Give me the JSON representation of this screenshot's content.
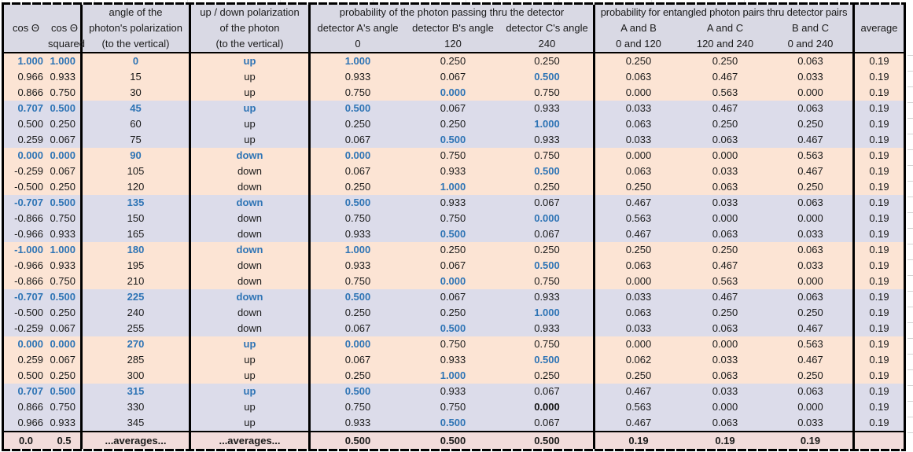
{
  "colors": {
    "header_bg": "#d9d9e4",
    "band_peach": "#fce4d4",
    "band_lavender": "#dcdcea",
    "footer_bg": "#f2dcdb",
    "highlight_blue": "#2e74b5",
    "border": "#000000"
  },
  "header": {
    "cos": "cos Θ",
    "cos_sq_line1": "cos Θ",
    "cos_sq_line2": "squared",
    "angle_line1": "angle of the",
    "angle_line2": "photon's polarization",
    "angle_line3": "(to the vertical)",
    "updown_line1": "up / down polarization",
    "updown_line2": "of the photon",
    "updown_line3": "(to the vertical)",
    "detector_group": "probability of the photon passing thru the detector",
    "det_a": "detector A's angle",
    "det_a_angle": "0",
    "det_b": "detector B's angle",
    "det_b_angle": "120",
    "det_c": "detector C's angle",
    "det_c_angle": "240",
    "pair_group": "probability for entangled photon pairs thru detector pairs",
    "pair_ab": "A and B",
    "pair_ab_angles": "0 and 120",
    "pair_ac": "A and C",
    "pair_ac_angles": "120 and 240",
    "pair_bc": "B and C",
    "pair_bc_angles": "0 and 240",
    "average": "average"
  },
  "rows": [
    {
      "cells": [
        "1.000",
        "1.000",
        "0",
        "up",
        "1.000",
        "0.250",
        "0.250",
        "0.250",
        "0.250",
        "0.063",
        "0.19"
      ],
      "hl": [
        0,
        1,
        2,
        3,
        4
      ],
      "kb": [],
      "band": "peach"
    },
    {
      "cells": [
        "0.966",
        "0.933",
        "15",
        "up",
        "0.933",
        "0.067",
        "0.500",
        "0.063",
        "0.467",
        "0.033",
        "0.19"
      ],
      "hl": [
        6
      ],
      "kb": [],
      "band": "peach"
    },
    {
      "cells": [
        "0.866",
        "0.750",
        "30",
        "up",
        "0.750",
        "0.000",
        "0.750",
        "0.000",
        "0.563",
        "0.000",
        "0.19"
      ],
      "hl": [
        5
      ],
      "kb": [],
      "band": "peach"
    },
    {
      "cells": [
        "0.707",
        "0.500",
        "45",
        "up",
        "0.500",
        "0.067",
        "0.933",
        "0.033",
        "0.467",
        "0.063",
        "0.19"
      ],
      "hl": [
        0,
        1,
        2,
        3,
        4
      ],
      "kb": [],
      "band": "lav"
    },
    {
      "cells": [
        "0.500",
        "0.250",
        "60",
        "up",
        "0.250",
        "0.250",
        "1.000",
        "0.063",
        "0.250",
        "0.250",
        "0.19"
      ],
      "hl": [
        6
      ],
      "kb": [],
      "band": "lav"
    },
    {
      "cells": [
        "0.259",
        "0.067",
        "75",
        "up",
        "0.067",
        "0.500",
        "0.933",
        "0.033",
        "0.063",
        "0.467",
        "0.19"
      ],
      "hl": [
        5
      ],
      "kb": [],
      "band": "lav"
    },
    {
      "cells": [
        "0.000",
        "0.000",
        "90",
        "down",
        "0.000",
        "0.750",
        "0.750",
        "0.000",
        "0.000",
        "0.563",
        "0.19"
      ],
      "hl": [
        0,
        1,
        2,
        3,
        4
      ],
      "kb": [],
      "band": "peach"
    },
    {
      "cells": [
        "-0.259",
        "0.067",
        "105",
        "down",
        "0.067",
        "0.933",
        "0.500",
        "0.063",
        "0.033",
        "0.467",
        "0.19"
      ],
      "hl": [
        6
      ],
      "kb": [],
      "band": "peach"
    },
    {
      "cells": [
        "-0.500",
        "0.250",
        "120",
        "down",
        "0.250",
        "1.000",
        "0.250",
        "0.250",
        "0.063",
        "0.250",
        "0.19"
      ],
      "hl": [
        5
      ],
      "kb": [],
      "band": "peach"
    },
    {
      "cells": [
        "-0.707",
        "0.500",
        "135",
        "down",
        "0.500",
        "0.933",
        "0.067",
        "0.467",
        "0.033",
        "0.063",
        "0.19"
      ],
      "hl": [
        0,
        1,
        2,
        3,
        4
      ],
      "kb": [],
      "band": "lav"
    },
    {
      "cells": [
        "-0.866",
        "0.750",
        "150",
        "down",
        "0.750",
        "0.750",
        "0.000",
        "0.563",
        "0.000",
        "0.000",
        "0.19"
      ],
      "hl": [
        6
      ],
      "kb": [],
      "band": "lav"
    },
    {
      "cells": [
        "-0.966",
        "0.933",
        "165",
        "down",
        "0.933",
        "0.500",
        "0.067",
        "0.467",
        "0.063",
        "0.033",
        "0.19"
      ],
      "hl": [
        5
      ],
      "kb": [],
      "band": "lav"
    },
    {
      "cells": [
        "-1.000",
        "1.000",
        "180",
        "down",
        "1.000",
        "0.250",
        "0.250",
        "0.250",
        "0.250",
        "0.063",
        "0.19"
      ],
      "hl": [
        0,
        1,
        2,
        3,
        4
      ],
      "kb": [],
      "band": "peach"
    },
    {
      "cells": [
        "-0.966",
        "0.933",
        "195",
        "down",
        "0.933",
        "0.067",
        "0.500",
        "0.063",
        "0.467",
        "0.033",
        "0.19"
      ],
      "hl": [
        6
      ],
      "kb": [],
      "band": "peach"
    },
    {
      "cells": [
        "-0.866",
        "0.750",
        "210",
        "down",
        "0.750",
        "0.000",
        "0.750",
        "0.000",
        "0.563",
        "0.000",
        "0.19"
      ],
      "hl": [
        5
      ],
      "kb": [],
      "band": "peach"
    },
    {
      "cells": [
        "-0.707",
        "0.500",
        "225",
        "down",
        "0.500",
        "0.067",
        "0.933",
        "0.033",
        "0.467",
        "0.063",
        "0.19"
      ],
      "hl": [
        0,
        1,
        2,
        3,
        4
      ],
      "kb": [],
      "band": "lav"
    },
    {
      "cells": [
        "-0.500",
        "0.250",
        "240",
        "down",
        "0.250",
        "0.250",
        "1.000",
        "0.063",
        "0.250",
        "0.250",
        "0.19"
      ],
      "hl": [
        6
      ],
      "kb": [],
      "band": "lav"
    },
    {
      "cells": [
        "-0.259",
        "0.067",
        "255",
        "down",
        "0.067",
        "0.500",
        "0.933",
        "0.033",
        "0.063",
        "0.467",
        "0.19"
      ],
      "hl": [
        5
      ],
      "kb": [],
      "band": "lav"
    },
    {
      "cells": [
        "0.000",
        "0.000",
        "270",
        "up",
        "0.000",
        "0.750",
        "0.750",
        "0.000",
        "0.000",
        "0.563",
        "0.19"
      ],
      "hl": [
        0,
        1,
        2,
        3,
        4
      ],
      "kb": [],
      "band": "peach"
    },
    {
      "cells": [
        "0.259",
        "0.067",
        "285",
        "up",
        "0.067",
        "0.933",
        "0.500",
        "0.062",
        "0.033",
        "0.467",
        "0.19"
      ],
      "hl": [
        6
      ],
      "kb": [],
      "band": "peach"
    },
    {
      "cells": [
        "0.500",
        "0.250",
        "300",
        "up",
        "0.250",
        "1.000",
        "0.250",
        "0.250",
        "0.063",
        "0.250",
        "0.19"
      ],
      "hl": [
        5
      ],
      "kb": [],
      "band": "peach"
    },
    {
      "cells": [
        "0.707",
        "0.500",
        "315",
        "up",
        "0.500",
        "0.933",
        "0.067",
        "0.467",
        "0.033",
        "0.063",
        "0.19"
      ],
      "hl": [
        0,
        1,
        2,
        3,
        4
      ],
      "kb": [],
      "band": "lav"
    },
    {
      "cells": [
        "0.866",
        "0.750",
        "330",
        "up",
        "0.750",
        "0.750",
        "0.000",
        "0.563",
        "0.000",
        "0.000",
        "0.19"
      ],
      "hl": [],
      "kb": [
        6
      ],
      "band": "lav"
    },
    {
      "cells": [
        "0.966",
        "0.933",
        "345",
        "up",
        "0.933",
        "0.500",
        "0.067",
        "0.467",
        "0.063",
        "0.033",
        "0.19"
      ],
      "hl": [
        5
      ],
      "kb": [],
      "band": "lav"
    }
  ],
  "footer": {
    "cells": [
      "0.0",
      "0.5",
      "...averages...",
      "...averages...",
      "0.500",
      "0.500",
      "0.500",
      "0.19",
      "0.19",
      "0.19",
      ""
    ]
  }
}
